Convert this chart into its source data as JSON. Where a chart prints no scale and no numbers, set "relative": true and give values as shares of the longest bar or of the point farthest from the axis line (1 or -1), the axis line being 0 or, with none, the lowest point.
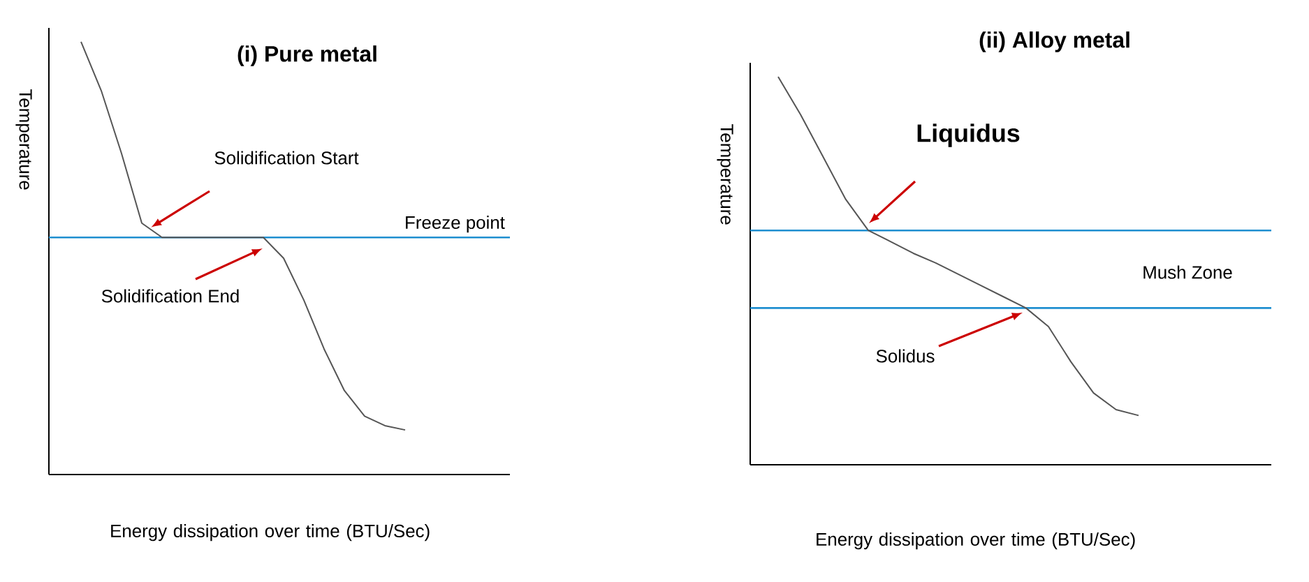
{
  "chart_data": [
    {
      "type": "line",
      "relative": true,
      "title": "(i) Pure metal",
      "xlabel": "Energy dissipation over time (BTU/Sec)",
      "ylabel": "Temperature",
      "categories": [
        null,
        null,
        null,
        null,
        null,
        null,
        null,
        null,
        null,
        null,
        null,
        null,
        null,
        null,
        null,
        null,
        null
      ],
      "series": [
        {
          "color": "#555555",
          "values": [
            1.0,
            0.887,
            0.742,
            0.581,
            0.548,
            0.548,
            0.548,
            0.548,
            0.548,
            0.548,
            0.5,
            0.403,
            0.29,
            0.194,
            0.135,
            0.113,
            0.103
          ]
        }
      ],
      "ref_lines": [
        {
          "axis": "y",
          "value": 0.548,
          "label": "Freeze point",
          "color": "#1f8fd0"
        }
      ],
      "annotations": [
        "Solidification Start",
        "Solidification End"
      ]
    },
    {
      "type": "line",
      "relative": true,
      "title": "(ii) Alloy metal",
      "xlabel": "Energy dissipation over time (BTU/Sec)",
      "ylabel": "Temperature",
      "categories": [
        null,
        null,
        null,
        null,
        null,
        null,
        null,
        null,
        null,
        null,
        null,
        null,
        null,
        null,
        null,
        null,
        null
      ],
      "series": [
        {
          "color": "#555555",
          "values": [
            1.0,
            0.902,
            0.793,
            0.684,
            0.604,
            0.575,
            0.545,
            0.52,
            0.491,
            0.462,
            0.433,
            0.404,
            0.356,
            0.265,
            0.185,
            0.142,
            0.127
          ]
        }
      ],
      "ref_lines": [
        {
          "axis": "y",
          "value": 0.604,
          "color": "#1f8fd0"
        },
        {
          "axis": "y",
          "value": 0.404,
          "color": "#1f8fd0"
        }
      ],
      "annotations": [
        "Liquidus",
        "Mush Zone",
        "Solidus"
      ]
    }
  ]
}
